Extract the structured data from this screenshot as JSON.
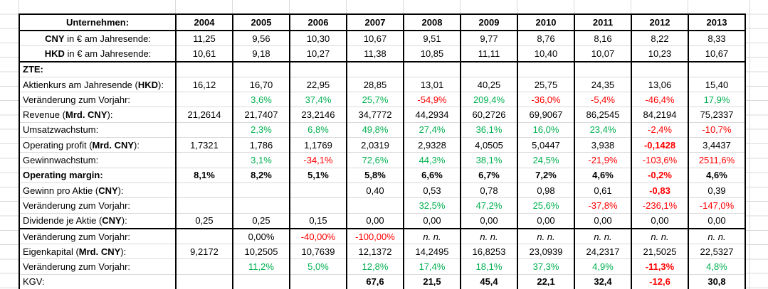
{
  "colors": {
    "positive_value": "#00B050",
    "negative_value": "#FF0000",
    "gridline": "#d9d9d9",
    "table_border": "#000000"
  },
  "table": {
    "header": {
      "label": "Unternehmen:",
      "years": [
        "2004",
        "2005",
        "2006",
        "2007",
        "2008",
        "2009",
        "2010",
        "2011",
        "2012",
        "2013"
      ]
    },
    "rows": [
      {
        "name": "cny-rate",
        "align": "center",
        "label": [
          [
            "CNY",
            1
          ],
          [
            " in € am Jahresende:",
            0
          ]
        ],
        "cells": [
          {
            "v": "11,25"
          },
          {
            "v": "9,56"
          },
          {
            "v": "10,30"
          },
          {
            "v": "10,67"
          },
          {
            "v": "9,51"
          },
          {
            "v": "9,77"
          },
          {
            "v": "8,76"
          },
          {
            "v": "8,16"
          },
          {
            "v": "8,22"
          },
          {
            "v": "8,33"
          }
        ]
      },
      {
        "name": "hkd-rate",
        "align": "center",
        "thick": true,
        "label": [
          [
            "HKD",
            1
          ],
          [
            " in € am Jahresende:",
            0
          ]
        ],
        "cells": [
          {
            "v": "10,61"
          },
          {
            "v": "9,18"
          },
          {
            "v": "10,27"
          },
          {
            "v": "11,38"
          },
          {
            "v": "10,85"
          },
          {
            "v": "11,11"
          },
          {
            "v": "10,40"
          },
          {
            "v": "10,07"
          },
          {
            "v": "10,23"
          },
          {
            "v": "10,67"
          }
        ]
      },
      {
        "name": "zte-section",
        "label": [
          [
            "ZTE:",
            1
          ]
        ],
        "cells": [
          {
            "v": ""
          },
          {
            "v": ""
          },
          {
            "v": ""
          },
          {
            "v": ""
          },
          {
            "v": ""
          },
          {
            "v": ""
          },
          {
            "v": ""
          },
          {
            "v": ""
          },
          {
            "v": ""
          },
          {
            "v": ""
          }
        ]
      },
      {
        "name": "share-price",
        "label": [
          [
            "Aktienkurs am Jahresende (",
            0
          ],
          [
            "HKD",
            1
          ],
          [
            "):",
            0
          ]
        ],
        "cells": [
          {
            "v": "16,12"
          },
          {
            "v": "16,70"
          },
          {
            "v": "22,95"
          },
          {
            "v": "28,85"
          },
          {
            "v": "13,01"
          },
          {
            "v": "40,25"
          },
          {
            "v": "25,75"
          },
          {
            "v": "24,35"
          },
          {
            "v": "13,06"
          },
          {
            "v": "15,40"
          }
        ]
      },
      {
        "name": "share-price-change",
        "label": [
          [
            "Veränderung zum Vorjahr:",
            0
          ]
        ],
        "cells": [
          {
            "v": ""
          },
          {
            "v": "3,6%",
            "s": "g"
          },
          {
            "v": "37,4%",
            "s": "g"
          },
          {
            "v": "25,7%",
            "s": "g"
          },
          {
            "v": "-54,9%",
            "s": "r"
          },
          {
            "v": "209,4%",
            "s": "g"
          },
          {
            "v": "-36,0%",
            "s": "r"
          },
          {
            "v": "-5,4%",
            "s": "r"
          },
          {
            "v": "-46,4%",
            "s": "r"
          },
          {
            "v": "17,9%",
            "s": "g"
          }
        ]
      },
      {
        "name": "revenue",
        "label": [
          [
            "Revenue (",
            0
          ],
          [
            "Mrd. CNY",
            1
          ],
          [
            "):",
            0
          ]
        ],
        "cells": [
          {
            "v": "21,2614"
          },
          {
            "v": "21,7407"
          },
          {
            "v": "23,2146"
          },
          {
            "v": "34,7772"
          },
          {
            "v": "44,2934"
          },
          {
            "v": "60,2726"
          },
          {
            "v": "69,9067"
          },
          {
            "v": "86,2545"
          },
          {
            "v": "84,2194"
          },
          {
            "v": "75,2337"
          }
        ]
      },
      {
        "name": "revenue-growth",
        "label": [
          [
            "Umsatzwachstum:",
            0
          ]
        ],
        "cells": [
          {
            "v": ""
          },
          {
            "v": "2,3%",
            "s": "g"
          },
          {
            "v": "6,8%",
            "s": "g"
          },
          {
            "v": "49,8%",
            "s": "g"
          },
          {
            "v": "27,4%",
            "s": "g"
          },
          {
            "v": "36,1%",
            "s": "g"
          },
          {
            "v": "16,0%",
            "s": "g"
          },
          {
            "v": "23,4%",
            "s": "g"
          },
          {
            "v": "-2,4%",
            "s": "r"
          },
          {
            "v": "-10,7%",
            "s": "r"
          }
        ]
      },
      {
        "name": "operating-profit",
        "label": [
          [
            "Operating profit (",
            0
          ],
          [
            "Mrd. CNY",
            1
          ],
          [
            "):",
            0
          ]
        ],
        "cells": [
          {
            "v": "1,7321"
          },
          {
            "v": "1,786"
          },
          {
            "v": "1,1769"
          },
          {
            "v": "2,0319"
          },
          {
            "v": "2,9328"
          },
          {
            "v": "4,0505"
          },
          {
            "v": "5,0447"
          },
          {
            "v": "3,938"
          },
          {
            "v": "-0,1428",
            "s": "r b"
          },
          {
            "v": "3,4437"
          }
        ]
      },
      {
        "name": "profit-growth",
        "label": [
          [
            "Gewinnwachstum:",
            0
          ]
        ],
        "cells": [
          {
            "v": ""
          },
          {
            "v": "3,1%",
            "s": "g"
          },
          {
            "v": "-34,1%",
            "s": "r"
          },
          {
            "v": "72,6%",
            "s": "g"
          },
          {
            "v": "44,3%",
            "s": "g"
          },
          {
            "v": "38,1%",
            "s": "g"
          },
          {
            "v": "24,5%",
            "s": "g"
          },
          {
            "v": "-21,9%",
            "s": "r"
          },
          {
            "v": "-103,6%",
            "s": "r"
          },
          {
            "v": "2511,6%",
            "s": "r"
          }
        ]
      },
      {
        "name": "operating-margin",
        "bold": true,
        "label": [
          [
            "Operating margin:",
            1
          ]
        ],
        "cells": [
          {
            "v": "8,1%",
            "s": "b"
          },
          {
            "v": "8,2%",
            "s": "b"
          },
          {
            "v": "5,1%",
            "s": "b"
          },
          {
            "v": "5,8%",
            "s": "b"
          },
          {
            "v": "6,6%",
            "s": "b"
          },
          {
            "v": "6,7%",
            "s": "b"
          },
          {
            "v": "7,2%",
            "s": "b"
          },
          {
            "v": "4,6%",
            "s": "b"
          },
          {
            "v": "-0,2%",
            "s": "r b"
          },
          {
            "v": "4,6%",
            "s": "b"
          }
        ]
      },
      {
        "name": "eps",
        "label": [
          [
            "Gewinn pro Aktie (",
            0
          ],
          [
            "CNY",
            1
          ],
          [
            "):",
            0
          ]
        ],
        "cells": [
          {
            "v": ""
          },
          {
            "v": ""
          },
          {
            "v": ""
          },
          {
            "v": "0,40"
          },
          {
            "v": "0,53"
          },
          {
            "v": "0,78"
          },
          {
            "v": "0,98"
          },
          {
            "v": "0,61"
          },
          {
            "v": "-0,83",
            "s": "r b"
          },
          {
            "v": "0,39"
          }
        ]
      },
      {
        "name": "eps-change",
        "label": [
          [
            "Veränderung zum Vorjahr:",
            0
          ]
        ],
        "cells": [
          {
            "v": ""
          },
          {
            "v": ""
          },
          {
            "v": ""
          },
          {
            "v": ""
          },
          {
            "v": "32,5%",
            "s": "g"
          },
          {
            "v": "47,2%",
            "s": "g"
          },
          {
            "v": "25,6%",
            "s": "g"
          },
          {
            "v": "-37,8%",
            "s": "r"
          },
          {
            "v": "-236,1%",
            "s": "r"
          },
          {
            "v": "-147,0%",
            "s": "r"
          }
        ]
      },
      {
        "name": "dividend",
        "thick": true,
        "label": [
          [
            "Dividende je Aktie (",
            0
          ],
          [
            "CNY",
            1
          ],
          [
            "):",
            0
          ]
        ],
        "cells": [
          {
            "v": "0,25"
          },
          {
            "v": "0,25"
          },
          {
            "v": "0,15"
          },
          {
            "v": "0,00"
          },
          {
            "v": "0,00"
          },
          {
            "v": "0,00"
          },
          {
            "v": "0,00"
          },
          {
            "v": "0,00"
          },
          {
            "v": "0,00"
          },
          {
            "v": "0,00"
          }
        ]
      },
      {
        "name": "dividend-change",
        "label": [
          [
            "Veränderung zum Vorjahr:",
            0
          ]
        ],
        "cells": [
          {
            "v": ""
          },
          {
            "v": "0,00%"
          },
          {
            "v": "-40,00%",
            "s": "r"
          },
          {
            "v": "-100,00%",
            "s": "r"
          },
          {
            "v": "n. n.",
            "s": "i"
          },
          {
            "v": "n. n.",
            "s": "i"
          },
          {
            "v": "n. n.",
            "s": "i"
          },
          {
            "v": "n. n.",
            "s": "i"
          },
          {
            "v": "n. n.",
            "s": "i"
          },
          {
            "v": "n. n.",
            "s": "i"
          }
        ]
      },
      {
        "name": "equity",
        "label": [
          [
            "Eigenkapital (",
            0
          ],
          [
            "Mrd. CNY",
            1
          ],
          [
            "):",
            0
          ]
        ],
        "cells": [
          {
            "v": "9,2172"
          },
          {
            "v": "10,2505"
          },
          {
            "v": "10,7639"
          },
          {
            "v": "12,1372"
          },
          {
            "v": "14,2495"
          },
          {
            "v": "16,8253"
          },
          {
            "v": "23,0939"
          },
          {
            "v": "24,2317"
          },
          {
            "v": "21,5025"
          },
          {
            "v": "22,5327"
          }
        ]
      },
      {
        "name": "equity-change",
        "label": [
          [
            "Veränderung zum Vorjahr:",
            0
          ]
        ],
        "cells": [
          {
            "v": ""
          },
          {
            "v": "11,2%",
            "s": "g"
          },
          {
            "v": "5,0%",
            "s": "g"
          },
          {
            "v": "12,8%",
            "s": "g"
          },
          {
            "v": "17,4%",
            "s": "g"
          },
          {
            "v": "18,1%",
            "s": "g"
          },
          {
            "v": "37,3%",
            "s": "g"
          },
          {
            "v": "4,9%",
            "s": "g"
          },
          {
            "v": "-11,3%",
            "s": "r b"
          },
          {
            "v": "4,8%",
            "s": "g"
          }
        ]
      },
      {
        "name": "pe-ratio",
        "label": [
          [
            "KGV:",
            0
          ]
        ],
        "cells": [
          {
            "v": ""
          },
          {
            "v": ""
          },
          {
            "v": ""
          },
          {
            "v": "67,6",
            "s": "b"
          },
          {
            "v": "21,5",
            "s": "b"
          },
          {
            "v": "45,4",
            "s": "b"
          },
          {
            "v": "22,1",
            "s": "b"
          },
          {
            "v": "32,4",
            "s": "b"
          },
          {
            "v": "-12,6",
            "s": "r b"
          },
          {
            "v": "30,8",
            "s": "b"
          }
        ]
      }
    ]
  }
}
